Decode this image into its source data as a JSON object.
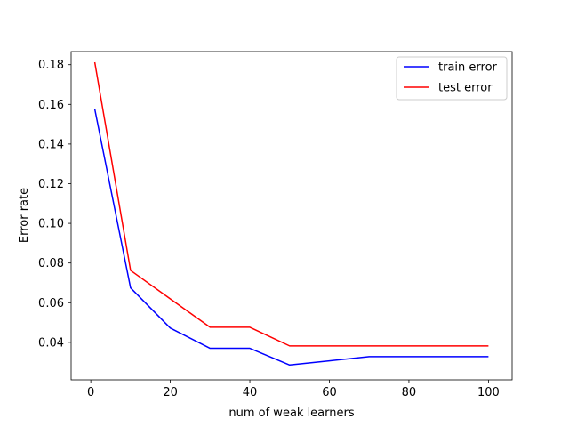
{
  "chart_data": {
    "type": "line",
    "title": "",
    "xlabel": "num of weak learners",
    "ylabel": "Error rate",
    "xlim": [
      -4.95,
      105.95
    ],
    "ylim": [
      0.0211,
      0.1866
    ],
    "xticks": [
      0,
      20,
      40,
      60,
      80,
      100
    ],
    "xtick_labels": [
      "0",
      "20",
      "40",
      "60",
      "80",
      "100"
    ],
    "yticks": [
      0.04,
      0.06,
      0.08,
      0.1,
      0.12,
      0.14,
      0.16,
      0.18
    ],
    "ytick_labels": [
      "0.04",
      "0.06",
      "0.08",
      "0.10",
      "0.12",
      "0.14",
      "0.16",
      "0.18"
    ],
    "grid": false,
    "legend_position": "top-right",
    "series": [
      {
        "name": "train error",
        "color": "#0000ff",
        "x": [
          1,
          10,
          20,
          30,
          40,
          50,
          60,
          70,
          80,
          90,
          100
        ],
        "y": [
          0.1576,
          0.0675,
          0.0472,
          0.037,
          0.037,
          0.0286,
          0.0307,
          0.0328,
          0.0328,
          0.0328,
          0.0328
        ]
      },
      {
        "name": "test error",
        "color": "#ff0000",
        "x": [
          1,
          10,
          20,
          30,
          40,
          50,
          60,
          70,
          80,
          90,
          100
        ],
        "y": [
          0.1812,
          0.0763,
          0.0619,
          0.0476,
          0.0476,
          0.0382,
          0.0382,
          0.0382,
          0.0382,
          0.0382,
          0.0382
        ]
      }
    ]
  }
}
